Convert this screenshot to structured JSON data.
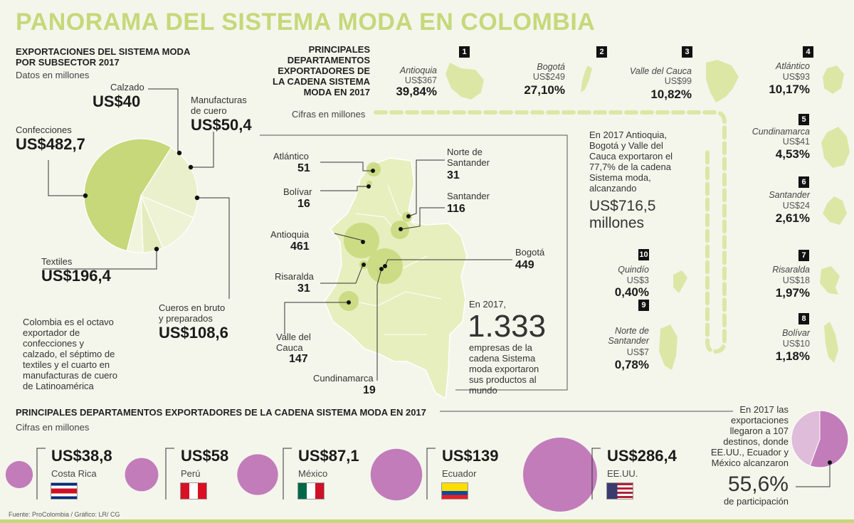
{
  "title": "PANORAMA DEL SISTEMA MODA EN COLOMBIA",
  "source": "Fuente: ProColombia / Gráfico: LR/ CG",
  "colors": {
    "accent_green": "#c6d87a",
    "light_green": "#e7efbf",
    "purple": "#c27cba",
    "light_purple": "#dfbcda"
  },
  "subsector": {
    "heading_line1": "EXPORTACIONES DEL SISTEMA MODA",
    "heading_line2": "POR SUBSECTOR 2017",
    "units": "Datos en millones",
    "items": [
      {
        "name": "Calzado",
        "value_label": "US$40"
      },
      {
        "name_line1": "Manufacturas",
        "name_line2": "de cuero",
        "value_label": "US$50,4"
      },
      {
        "name": "Confecciones",
        "value_label": "US$482,7"
      },
      {
        "name": "Textiles",
        "value_label": "US$196,4"
      },
      {
        "name_line1": "Cueros en bruto",
        "name_line2": "y preparados",
        "value_label": "US$108,6"
      }
    ]
  },
  "colombia_note": [
    "Colombia es el octavo",
    "exportador de",
    "confecciones y",
    "calzado, el séptimo de",
    "textiles y el cuarto en",
    "manufacturas de cuero",
    "de Latinoamérica"
  ],
  "map": {
    "labels": [
      {
        "name": "Atlántico",
        "value": "51"
      },
      {
        "name": "Bolívar",
        "value": "16"
      },
      {
        "name_line1": "Norte de",
        "name_line2": "Santander",
        "value": "31"
      },
      {
        "name": "Santander",
        "value": "116"
      },
      {
        "name": "Antioquia",
        "value": "461"
      },
      {
        "name": "Bogotá",
        "value": "449"
      },
      {
        "name": "Risaralda",
        "value": "31"
      },
      {
        "name_line1": "Valle del",
        "name_line2": "Cauca",
        "value": "147"
      },
      {
        "name": "Cundinamarca",
        "value": "19"
      }
    ],
    "note_prefix": "En 2017,",
    "note_big": "1.333",
    "note_lines": [
      "empresas de la",
      "cadena Sistema",
      "moda exportaron",
      "sus productos al",
      "mundo"
    ]
  },
  "ranking": {
    "heading": [
      "PRINCIPALES",
      "DEPARTAMENTOS",
      "EXPORTADORES DE",
      "LA CADENA SISTEMA",
      "MODA EN 2017"
    ],
    "units": "Cifras en millones",
    "items": [
      {
        "rank": "1",
        "name": "Antioquia",
        "value": "US$367",
        "pct": "39,84%"
      },
      {
        "rank": "2",
        "name": "Bogotá",
        "value": "US$249",
        "pct": "27,10%"
      },
      {
        "rank": "3",
        "name": "Valle del Cauca",
        "value": "US$99",
        "pct": "10,82%"
      },
      {
        "rank": "4",
        "name": "Atlántico",
        "value": "US$93",
        "pct": "10,17%"
      },
      {
        "rank": "5",
        "name": "Cundinamarca",
        "value": "US$41",
        "pct": "4,53%"
      },
      {
        "rank": "6",
        "name": "Santander",
        "value": "US$24",
        "pct": "2,61%"
      },
      {
        "rank": "7",
        "name": "Risaralda",
        "value": "US$18",
        "pct": "1,97%"
      },
      {
        "rank": "8",
        "name": "Bolívar",
        "value": "US$10",
        "pct": "1,18%"
      },
      {
        "rank": "9",
        "name_line1": "Norte de",
        "name_line2": "Santander",
        "value": "US$7",
        "pct": "0,78%"
      },
      {
        "rank": "10",
        "name": "Quindío",
        "value": "US$3",
        "pct": "0,40%"
      }
    ],
    "summary_lines": [
      "En 2017 Antioquia,",
      "Bogotá y Valle del",
      "Cauca exportaron el",
      "77,7% de la cadena",
      "Sistema moda,",
      "alcanzando"
    ],
    "summary_big1": "US$716,5",
    "summary_big2": "millones"
  },
  "destinations": {
    "heading": "PRINCIPALES DEPARTAMENTOS EXPORTADORES DE LA CADENA SISTEMA MODA EN 2017",
    "units": "Cifras en millones",
    "note_lines": [
      "En 2017 las",
      "exportaciones",
      "llegaron a 107",
      "destinos, donde",
      "EE.UU., Ecuador y",
      "México alcanzaron"
    ],
    "note_big": "55,6%",
    "note_suffix": "de participación"
  },
  "chart_data": [
    {
      "type": "pie",
      "title": "EXPORTACIONES DEL SISTEMA MODA POR SUBSECTOR 2017",
      "categories": [
        "Confecciones",
        "Textiles",
        "Cueros en bruto y preparados",
        "Manufacturas de cuero",
        "Calzado"
      ],
      "values": [
        482.7,
        196.4,
        108.6,
        50.4,
        40
      ]
    },
    {
      "type": "scatter",
      "title": "PRINCIPALES DEPARTAMENTOS EXPORTADORES DE LA CADENA SISTEMA MODA EN 2017",
      "categories": [
        "Costa Rica",
        "Perú",
        "México",
        "Ecuador",
        "EE.UU."
      ],
      "values": [
        38.8,
        58,
        87.1,
        139,
        286.4
      ],
      "value_labels": [
        "US$38,8",
        "US$58",
        "US$87,1",
        "US$139",
        "US$286,4"
      ]
    },
    {
      "type": "pie",
      "values": [
        55.6,
        44.4
      ],
      "value_labels": [
        "55,6%"
      ]
    }
  ]
}
